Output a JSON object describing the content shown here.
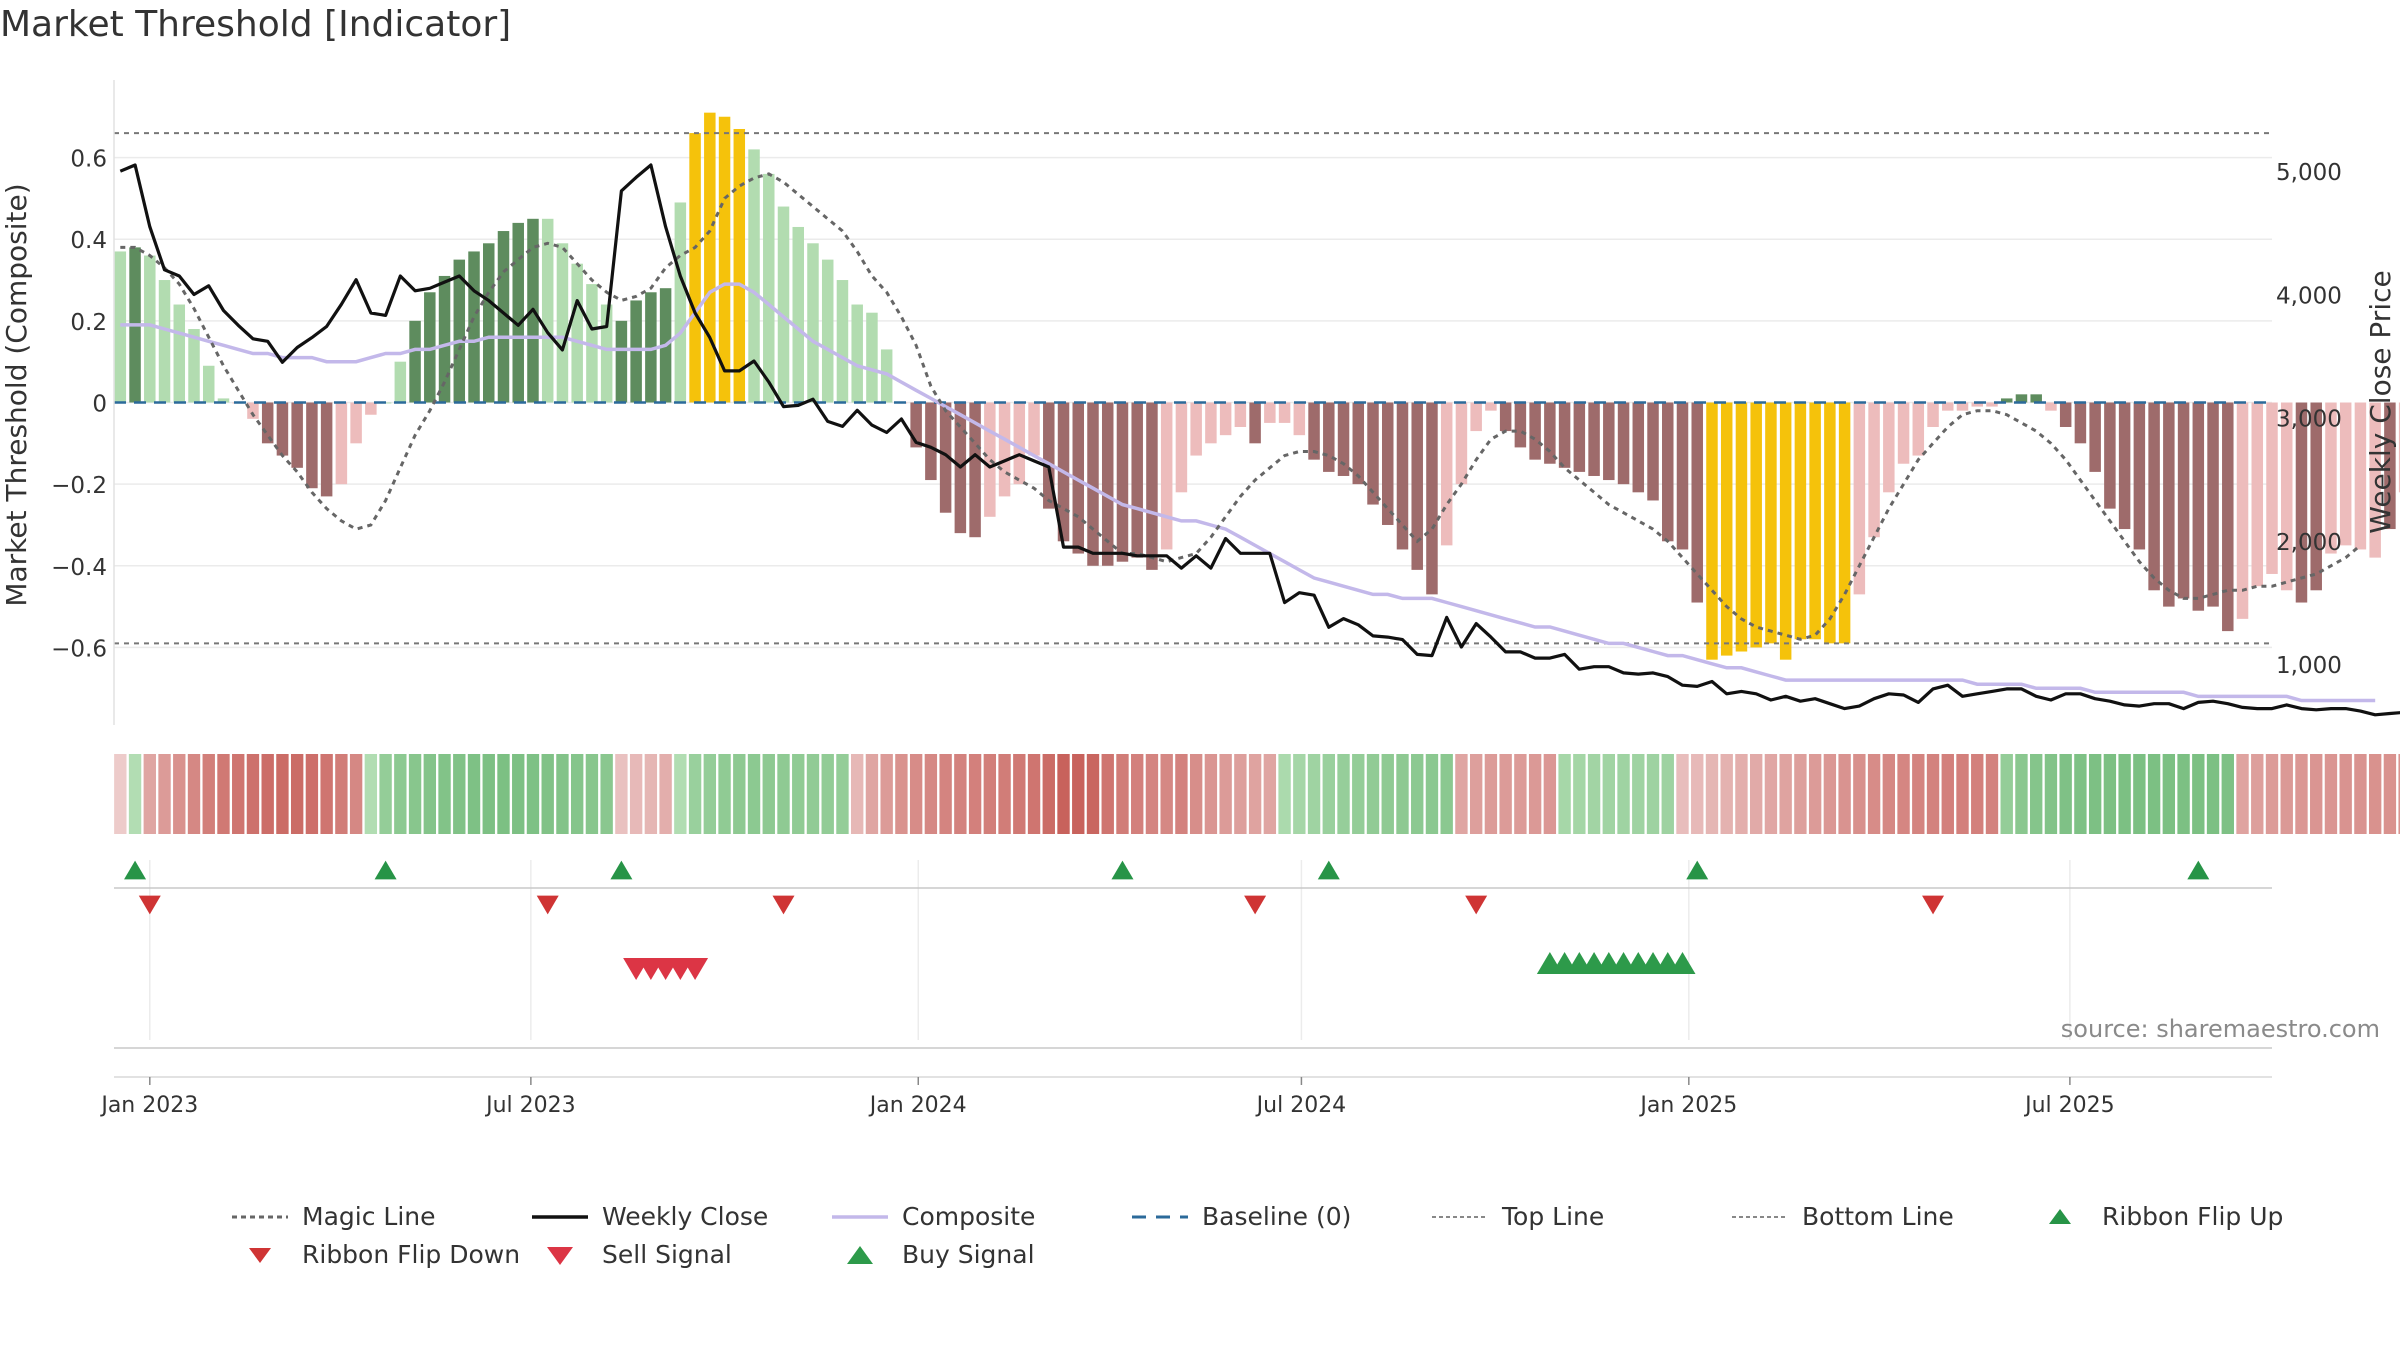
{
  "page": {
    "title": "Market Threshold [Indicator]",
    "source": "source: sharemaestro.com"
  },
  "colors": {
    "strong_green": "#5e8c5e",
    "light_green": "#b2dcb0",
    "strong_red": "#9e6b6b",
    "light_red": "#edbcbc",
    "extreme": "#f5c20b",
    "close": "#111111",
    "composite": "#c3b8ea",
    "magic": "#666666",
    "baseline": "#2b6a9a",
    "buy": "#2d9a4a",
    "sell": "#dc3545",
    "flip_up": "#279447",
    "flip_down": "#cf3434"
  },
  "legend": [
    {
      "key": "magic",
      "label": "Magic Line"
    },
    {
      "key": "close",
      "label": "Weekly Close"
    },
    {
      "key": "composite",
      "label": "Composite"
    },
    {
      "key": "baseline",
      "label": "Baseline (0)"
    },
    {
      "key": "top",
      "label": "Top Line"
    },
    {
      "key": "bottom",
      "label": "Bottom Line"
    },
    {
      "key": "flip_up",
      "label": "Ribbon Flip Up"
    },
    {
      "key": "flip_down",
      "label": "Ribbon Flip Down"
    },
    {
      "key": "sell",
      "label": "Sell Signal"
    },
    {
      "key": "buy",
      "label": "Buy Signal"
    }
  ],
  "chart_data": {
    "type": "bar",
    "title": "Market Threshold [Indicator]",
    "ylabel": "Market Threshold (Composite)",
    "y2label": "Weekly Close Price",
    "ylim": [
      -0.79,
      0.79
    ],
    "y2lim": [
      507,
      5740
    ],
    "yticks": [
      -0.6,
      -0.4,
      -0.2,
      0,
      0.2,
      0.4,
      0.6
    ],
    "ytick_labels": [
      "−0.6",
      "−0.4",
      "−0.2",
      "0",
      "0.2",
      "0.4",
      "0.6"
    ],
    "y2ticks": [
      1000,
      2000,
      3000,
      4000,
      5000
    ],
    "y2tick_labels": [
      "1,000",
      "2,000",
      "3,000",
      "4,000",
      "5,000"
    ],
    "xticks": [
      "2023-01-01",
      "2023-07-01",
      "2024-01-01",
      "2024-07-01",
      "2025-01-01",
      "2025-07-01"
    ],
    "xtick_labels": [
      "Jan 2023",
      "Jul 2023",
      "Jan 2024",
      "Jul 2024",
      "Jan 2025",
      "Jul 2025"
    ],
    "start_date": "2022-12-18",
    "x_range": [
      "2022-12-15",
      "2025-10-05"
    ],
    "top_line": 0.66,
    "bottom_line": -0.59,
    "grid": true,
    "legend_position": "bottom",
    "series": [
      {
        "name": "Composite (bars)",
        "values": [
          0.37,
          0.38,
          0.36,
          0.3,
          0.24,
          0.18,
          0.09,
          0.01,
          0,
          -0.04,
          -0.1,
          -0.13,
          -0.16,
          -0.21,
          -0.23,
          -0.2,
          -0.1,
          -0.03,
          0,
          0.1,
          0.2,
          0.27,
          0.31,
          0.35,
          0.37,
          0.39,
          0.42,
          0.44,
          0.45,
          0.45,
          0.39,
          0.34,
          0.29,
          0.24,
          0.2,
          0.25,
          0.27,
          0.28,
          0.49,
          0.66,
          0.71,
          0.7,
          0.67,
          0.62,
          0.56,
          0.48,
          0.43,
          0.39,
          0.35,
          0.3,
          0.24,
          0.22,
          0.13,
          0,
          -0.11,
          -0.19,
          -0.27,
          -0.32,
          -0.33,
          -0.28,
          -0.23,
          -0.2,
          -0.13,
          -0.26,
          -0.34,
          -0.37,
          -0.4,
          -0.4,
          -0.39,
          -0.38,
          -0.41,
          -0.36,
          -0.22,
          -0.13,
          -0.1,
          -0.08,
          -0.06,
          -0.1,
          -0.05,
          -0.05,
          -0.08,
          -0.14,
          -0.17,
          -0.18,
          -0.2,
          -0.25,
          -0.3,
          -0.36,
          -0.41,
          -0.47,
          -0.35,
          -0.2,
          -0.07,
          -0.02,
          -0.07,
          -0.11,
          -0.14,
          -0.15,
          -0.16,
          -0.17,
          -0.18,
          -0.19,
          -0.2,
          -0.22,
          -0.24,
          -0.34,
          -0.36,
          -0.49,
          -0.63,
          -0.62,
          -0.61,
          -0.6,
          -0.59,
          -0.63,
          -0.58,
          -0.58,
          -0.59,
          -0.59,
          -0.47,
          -0.33,
          -0.22,
          -0.15,
          -0.13,
          -0.06,
          -0.02,
          -0.02,
          -0.01,
          -0.01,
          0.01,
          0.02,
          0.02,
          -0.02,
          -0.06,
          -0.1,
          -0.17,
          -0.26,
          -0.31,
          -0.36,
          -0.46,
          -0.5,
          -0.48,
          -0.51,
          -0.5,
          -0.56,
          -0.53,
          -0.45,
          -0.42,
          -0.46,
          -0.49,
          -0.46,
          -0.37,
          -0.35,
          -0.36,
          -0.38,
          -0.31,
          -0.22
        ],
        "color_class": [
          "lg",
          "sg",
          "lg",
          "lg",
          "lg",
          "lg",
          "lg",
          "lg",
          "lr",
          "lr",
          "sr",
          "sr",
          "sr",
          "sr",
          "sr",
          "lr",
          "lr",
          "lr",
          "lg",
          "lg",
          "sg",
          "sg",
          "sg",
          "sg",
          "sg",
          "sg",
          "sg",
          "sg",
          "sg",
          "lg",
          "lg",
          "lg",
          "lg",
          "lg",
          "sg",
          "sg",
          "sg",
          "sg",
          "lg",
          "ye",
          "ye",
          "ye",
          "ye",
          "lg",
          "lg",
          "lg",
          "lg",
          "lg",
          "lg",
          "lg",
          "lg",
          "lg",
          "lg",
          "lr",
          "sr",
          "sr",
          "sr",
          "sr",
          "sr",
          "lr",
          "lr",
          "lr",
          "lr",
          "sr",
          "sr",
          "sr",
          "sr",
          "sr",
          "sr",
          "sr",
          "sr",
          "lr",
          "lr",
          "lr",
          "lr",
          "lr",
          "lr",
          "sr",
          "lr",
          "lr",
          "lr",
          "sr",
          "sr",
          "sr",
          "sr",
          "sr",
          "sr",
          "sr",
          "sr",
          "sr",
          "lr",
          "lr",
          "lr",
          "lr",
          "sr",
          "sr",
          "sr",
          "sr",
          "sr",
          "sr",
          "sr",
          "sr",
          "sr",
          "sr",
          "sr",
          "sr",
          "sr",
          "sr",
          "ye",
          "ye",
          "ye",
          "ye",
          "ye",
          "ye",
          "ye",
          "ye",
          "ye",
          "ye",
          "lr",
          "lr",
          "lr",
          "lr",
          "lr",
          "lr",
          "lr",
          "lr",
          "lr",
          "lr",
          "sg",
          "sg",
          "sg",
          "lr",
          "sr",
          "sr",
          "sr",
          "sr",
          "sr",
          "sr",
          "sr",
          "sr",
          "sr",
          "sr",
          "sr",
          "sr",
          "lr",
          "lr",
          "lr",
          "lr",
          "sr",
          "sr",
          "lr",
          "lr",
          "lr",
          "lr",
          "sr",
          "lr",
          "lr"
        ]
      },
      {
        "name": "Weekly Close",
        "axis": "right",
        "values": [
          5000,
          5050,
          4550,
          4200,
          4150,
          4000,
          4070,
          3870,
          3750,
          3640,
          3620,
          3450,
          3570,
          3650,
          3740,
          3920,
          4120,
          3850,
          3830,
          4150,
          4030,
          4050,
          4100,
          4150,
          4030,
          3950,
          3850,
          3750,
          3880,
          3690,
          3550,
          3950,
          3720,
          3740,
          4840,
          4950,
          5050,
          4550,
          4150,
          3850,
          3650,
          3380,
          3380,
          3460,
          3290,
          3090,
          3100,
          3150,
          2970,
          2930,
          3060,
          2940,
          2880,
          2990,
          2800,
          2760,
          2700,
          2600,
          2700,
          2600,
          2650,
          2700,
          2650,
          2600,
          1950,
          1950,
          1900,
          1900,
          1900,
          1880,
          1880,
          1880,
          1780,
          1880,
          1780,
          2020,
          1900,
          1900,
          1900,
          1500,
          1580,
          1560,
          1300,
          1370,
          1320,
          1230,
          1220,
          1200,
          1080,
          1070,
          1380,
          1140,
          1330,
          1220,
          1100,
          1100,
          1050,
          1050,
          1080,
          960,
          980,
          980,
          930,
          920,
          930,
          900,
          830,
          820,
          860,
          760,
          780,
          760,
          710,
          740,
          700,
          720,
          680,
          640,
          660,
          720,
          760,
          750,
          690,
          800,
          830,
          740,
          760,
          780,
          800,
          800,
          740,
          710,
          760,
          760,
          720,
          700,
          670,
          660,
          680,
          680,
          640,
          690,
          700,
          680,
          650,
          640,
          640,
          670,
          640,
          630,
          640,
          640,
          620,
          590,
          600,
          610,
          580,
          650,
          650
        ]
      },
      {
        "name": "Magic Line",
        "values": [
          0.38,
          0.38,
          0.36,
          0.33,
          0.29,
          0.23,
          0.16,
          0.09,
          0.03,
          -0.03,
          -0.08,
          -0.13,
          -0.17,
          -0.22,
          -0.26,
          -0.29,
          -0.31,
          -0.3,
          -0.24,
          -0.16,
          -0.08,
          -0.02,
          0.05,
          0.13,
          0.21,
          0.27,
          0.32,
          0.35,
          0.38,
          0.39,
          0.38,
          0.34,
          0.3,
          0.27,
          0.25,
          0.26,
          0.28,
          0.33,
          0.36,
          0.38,
          0.42,
          0.5,
          0.53,
          0.55,
          0.56,
          0.54,
          0.51,
          0.48,
          0.45,
          0.42,
          0.37,
          0.31,
          0.27,
          0.21,
          0.14,
          0.04,
          -0.02,
          -0.06,
          -0.1,
          -0.14,
          -0.17,
          -0.19,
          -0.21,
          -0.24,
          -0.26,
          -0.28,
          -0.31,
          -0.34,
          -0.37,
          -0.37,
          -0.38,
          -0.39,
          -0.38,
          -0.37,
          -0.33,
          -0.28,
          -0.23,
          -0.19,
          -0.16,
          -0.13,
          -0.12,
          -0.12,
          -0.13,
          -0.15,
          -0.18,
          -0.22,
          -0.26,
          -0.3,
          -0.34,
          -0.31,
          -0.25,
          -0.2,
          -0.14,
          -0.09,
          -0.07,
          -0.07,
          -0.09,
          -0.12,
          -0.16,
          -0.19,
          -0.22,
          -0.25,
          -0.27,
          -0.29,
          -0.31,
          -0.34,
          -0.38,
          -0.42,
          -0.46,
          -0.5,
          -0.53,
          -0.55,
          -0.56,
          -0.57,
          -0.58,
          -0.57,
          -0.53,
          -0.47,
          -0.4,
          -0.33,
          -0.26,
          -0.2,
          -0.14,
          -0.1,
          -0.06,
          -0.03,
          -0.02,
          -0.02,
          -0.03,
          -0.05,
          -0.07,
          -0.1,
          -0.14,
          -0.19,
          -0.24,
          -0.29,
          -0.34,
          -0.39,
          -0.43,
          -0.46,
          -0.48,
          -0.48,
          -0.47,
          -0.46,
          -0.46,
          -0.45,
          -0.45,
          -0.44,
          -0.43,
          -0.42,
          -0.4,
          -0.38,
          -0.35
        ]
      },
      {
        "name": "Composite",
        "values": [
          0.19,
          0.19,
          0.19,
          0.18,
          0.17,
          0.16,
          0.15,
          0.14,
          0.13,
          0.12,
          0.12,
          0.11,
          0.11,
          0.11,
          0.1,
          0.1,
          0.1,
          0.11,
          0.12,
          0.12,
          0.13,
          0.13,
          0.14,
          0.15,
          0.15,
          0.16,
          0.16,
          0.16,
          0.16,
          0.16,
          0.16,
          0.15,
          0.14,
          0.13,
          0.13,
          0.13,
          0.13,
          0.14,
          0.17,
          0.22,
          0.27,
          0.29,
          0.29,
          0.27,
          0.24,
          0.21,
          0.18,
          0.15,
          0.13,
          0.11,
          0.09,
          0.08,
          0.07,
          0.05,
          0.03,
          0.01,
          -0.01,
          -0.03,
          -0.05,
          -0.07,
          -0.09,
          -0.11,
          -0.13,
          -0.15,
          -0.17,
          -0.19,
          -0.21,
          -0.23,
          -0.25,
          -0.26,
          -0.27,
          -0.28,
          -0.29,
          -0.29,
          -0.3,
          -0.31,
          -0.33,
          -0.35,
          -0.37,
          -0.39,
          -0.41,
          -0.43,
          -0.44,
          -0.45,
          -0.46,
          -0.47,
          -0.47,
          -0.48,
          -0.48,
          -0.48,
          -0.49,
          -0.5,
          -0.51,
          -0.52,
          -0.53,
          -0.54,
          -0.55,
          -0.55,
          -0.56,
          -0.57,
          -0.58,
          -0.59,
          -0.59,
          -0.6,
          -0.61,
          -0.62,
          -0.62,
          -0.63,
          -0.64,
          -0.65,
          -0.65,
          -0.66,
          -0.67,
          -0.68,
          -0.68,
          -0.68,
          -0.68,
          -0.68,
          -0.68,
          -0.68,
          -0.68,
          -0.68,
          -0.68,
          -0.68,
          -0.68,
          -0.68,
          -0.69,
          -0.69,
          -0.69,
          -0.69,
          -0.7,
          -0.7,
          -0.7,
          -0.7,
          -0.71,
          -0.71,
          -0.71,
          -0.71,
          -0.71,
          -0.71,
          -0.71,
          -0.72,
          -0.72,
          -0.72,
          -0.72,
          -0.72,
          -0.72,
          -0.72,
          -0.73,
          -0.73,
          -0.73,
          -0.73,
          -0.73,
          -0.73
        ]
      }
    ],
    "ribbon": {
      "values": [
        -0.5,
        0.4,
        -2.5,
        -3,
        -3.5,
        -4,
        -4.5,
        -4.8,
        -5,
        -5.2,
        -5.4,
        -5.5,
        -5.5,
        -5.3,
        -5,
        -4.6,
        -4,
        0.5,
        3,
        3.6,
        4,
        4.3,
        4.5,
        4.6,
        4.8,
        4.9,
        5,
        4.9,
        4.8,
        4.6,
        4.4,
        4.2,
        4,
        3.8,
        -1,
        -1.4,
        -1.6,
        -2,
        0.5,
        2.5,
        3,
        3.3,
        3.5,
        3.6,
        3.5,
        3.4,
        3.3,
        3.2,
        3.1,
        3,
        -1.5,
        -2.5,
        -3,
        -3.5,
        -3.8,
        -4,
        -4.2,
        -4.3,
        -4.4,
        -4.5,
        -4.6,
        -4.8,
        -5,
        -5.5,
        -6,
        -6.5,
        -5.8,
        -5,
        -4.6,
        -4.4,
        -4.2,
        -4,
        -4.3,
        -3.7,
        -3.3,
        -3,
        -2.8,
        -2.6,
        -2.5,
        1,
        1.5,
        2,
        2.5,
        2.8,
        3,
        3.2,
        3.4,
        3.5,
        3.6,
        3.7,
        3.7,
        -2.5,
        -2.8,
        -3,
        -3,
        -3,
        -3.1,
        -3.2,
        1.4,
        1.6,
        1.8,
        1.9,
        2,
        2,
        2.1,
        2.1,
        -1.2,
        -1.4,
        -1.6,
        -1.8,
        -2,
        -2.2,
        -2.4,
        -2.6,
        -2.8,
        -3,
        -3.2,
        -3.4,
        -3.6,
        -3.8,
        -4,
        -4.1,
        -4.2,
        -4.3,
        -4.4,
        -4.4,
        -4.4,
        -4.3,
        3,
        3.8,
        4.2,
        4.5,
        4.7,
        4.8,
        4.9,
        5,
        5,
        5,
        5,
        5,
        5,
        5,
        5,
        4.8,
        -2.6,
        -2.8,
        -3,
        -3.1,
        -3.2,
        -3.3,
        -3.3,
        -3.4,
        -3.4,
        -3.5,
        -3.5,
        -3.5,
        -3.5,
        -3.4,
        -3.3,
        -3.2,
        -3,
        2,
        2.2,
        2.3,
        2.5,
        2.8
      ]
    },
    "ribbon_flip_up_dates": [
      "2022-12-25",
      "2023-04-23",
      "2023-08-13",
      "2024-04-07",
      "2024-07-14",
      "2025-01-05",
      "2025-08-31"
    ],
    "ribbon_flip_down_dates": [
      "2023-01-01",
      "2023-07-09",
      "2023-10-29",
      "2024-06-09",
      "2024-09-22",
      "2025-04-27"
    ],
    "sell_signal_dates": [
      "2023-08-20",
      "2023-08-27",
      "2023-09-03",
      "2023-09-10",
      "2023-09-17"
    ],
    "buy_signal_dates": [
      "2024-10-27",
      "2024-11-03",
      "2024-11-10",
      "2024-11-17",
      "2024-11-24",
      "2024-12-01",
      "2024-12-08",
      "2024-12-15",
      "2024-12-22",
      "2024-12-29"
    ]
  }
}
